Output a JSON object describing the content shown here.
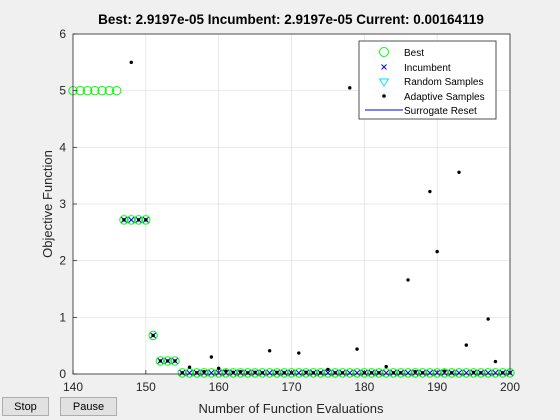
{
  "chart_data": {
    "type": "scatter",
    "title": "Best: 2.9197e-05 Incumbent: 2.9197e-05 Current: 0.00164119",
    "xlabel": "Number of Function Evaluations",
    "ylabel": "Objective Function",
    "xlim": [
      140,
      200
    ],
    "ylim": [
      0,
      6
    ],
    "xticks": [
      140,
      150,
      160,
      170,
      180,
      190,
      200
    ],
    "yticks": [
      0,
      1,
      2,
      3,
      4,
      5,
      6
    ],
    "grid": true,
    "legend_position": "top-right",
    "legend": [
      "Best",
      "Incumbent",
      "Random Samples",
      "Adaptive Samples",
      "Surrogate Reset"
    ],
    "colors": {
      "best": "#00ff00",
      "incumbent": "#0000ff",
      "random": "#00e5ee",
      "adaptive": "#000000",
      "reset": "#0000ff"
    },
    "best": {
      "x": [
        140,
        141,
        142,
        143,
        144,
        145,
        146,
        147,
        148,
        149,
        150,
        151,
        152,
        153,
        154,
        155,
        156,
        157,
        158,
        159,
        160,
        161,
        162,
        163,
        164,
        165,
        166,
        167,
        168,
        169,
        170,
        171,
        172,
        173,
        174,
        175,
        176,
        177,
        178,
        179,
        180,
        181,
        182,
        183,
        184,
        185,
        186,
        187,
        188,
        189,
        190,
        191,
        192,
        193,
        194,
        195,
        196,
        197,
        198,
        199,
        200
      ],
      "y": [
        5.0,
        5.0,
        5.0,
        5.0,
        5.0,
        5.0,
        5.0,
        2.72,
        2.72,
        2.72,
        2.72,
        0.68,
        0.23,
        0.23,
        0.23,
        0.02,
        0.02,
        0.02,
        0.02,
        0.02,
        0.02,
        0.02,
        0.02,
        0.02,
        0.02,
        0.02,
        0.02,
        0.02,
        0.02,
        0.02,
        0.02,
        0.02,
        0.02,
        0.02,
        0.02,
        0.02,
        0.02,
        0.02,
        0.02,
        0.02,
        0.02,
        0.02,
        0.02,
        0.02,
        0.02,
        0.02,
        0.02,
        0.02,
        0.02,
        0.02,
        0.02,
        0.02,
        0.02,
        0.02,
        0.02,
        0.02,
        0.02,
        0.02,
        0.02,
        0.02,
        0.02
      ]
    },
    "incumbent": {
      "x": [
        147,
        148,
        149,
        150,
        151,
        152,
        153,
        154,
        155,
        156,
        157,
        158,
        159,
        160,
        161,
        162,
        163,
        164,
        165,
        166,
        167,
        168,
        169,
        170,
        171,
        172,
        173,
        174,
        175,
        176,
        177,
        178,
        179,
        180,
        181,
        182,
        183,
        184,
        185,
        186,
        187,
        188,
        189,
        190,
        191,
        192,
        193,
        194,
        195,
        196,
        197,
        198,
        199,
        200
      ],
      "y": [
        2.72,
        2.72,
        2.72,
        2.72,
        0.68,
        0.23,
        0.23,
        0.23,
        0.02,
        0.02,
        0.02,
        0.02,
        0.02,
        0.02,
        0.02,
        0.02,
        0.02,
        0.02,
        0.02,
        0.02,
        0.02,
        0.02,
        0.02,
        0.02,
        0.02,
        0.02,
        0.02,
        0.02,
        0.02,
        0.02,
        0.02,
        0.02,
        0.02,
        0.02,
        0.02,
        0.02,
        0.02,
        0.02,
        0.02,
        0.02,
        0.02,
        0.02,
        0.02,
        0.02,
        0.02,
        0.02,
        0.02,
        0.02,
        0.02,
        0.02,
        0.02,
        0.02,
        0.02,
        0.02
      ]
    },
    "adaptive": {
      "x": [
        147,
        148,
        149,
        150,
        151,
        152,
        153,
        154,
        155,
        156,
        157,
        158,
        159,
        160,
        161,
        162,
        163,
        164,
        165,
        166,
        167,
        168,
        169,
        170,
        171,
        172,
        173,
        174,
        175,
        176,
        177,
        178,
        179,
        180,
        181,
        182,
        183,
        184,
        185,
        186,
        187,
        188,
        189,
        190,
        191,
        192,
        193,
        194,
        195,
        196,
        197,
        198,
        199,
        200
      ],
      "y": [
        2.72,
        5.5,
        2.72,
        2.72,
        0.68,
        0.23,
        0.23,
        0.23,
        0.02,
        0.12,
        0.02,
        0.04,
        0.3,
        0.1,
        0.05,
        0.03,
        0.04,
        0.02,
        0.03,
        0.02,
        0.41,
        0.03,
        0.02,
        0.02,
        0.37,
        0.03,
        0.02,
        0.02,
        0.08,
        0.02,
        0.02,
        5.05,
        0.44,
        0.02,
        0.02,
        0.02,
        0.13,
        0.02,
        0.02,
        1.66,
        0.04,
        0.02,
        3.22,
        2.16,
        0.05,
        0.02,
        3.56,
        0.51,
        0.03,
        0.02,
        0.97,
        0.22,
        0.02,
        0.02
      ]
    }
  },
  "controls": {
    "stop_label": "Stop",
    "pause_label": "Pause"
  }
}
